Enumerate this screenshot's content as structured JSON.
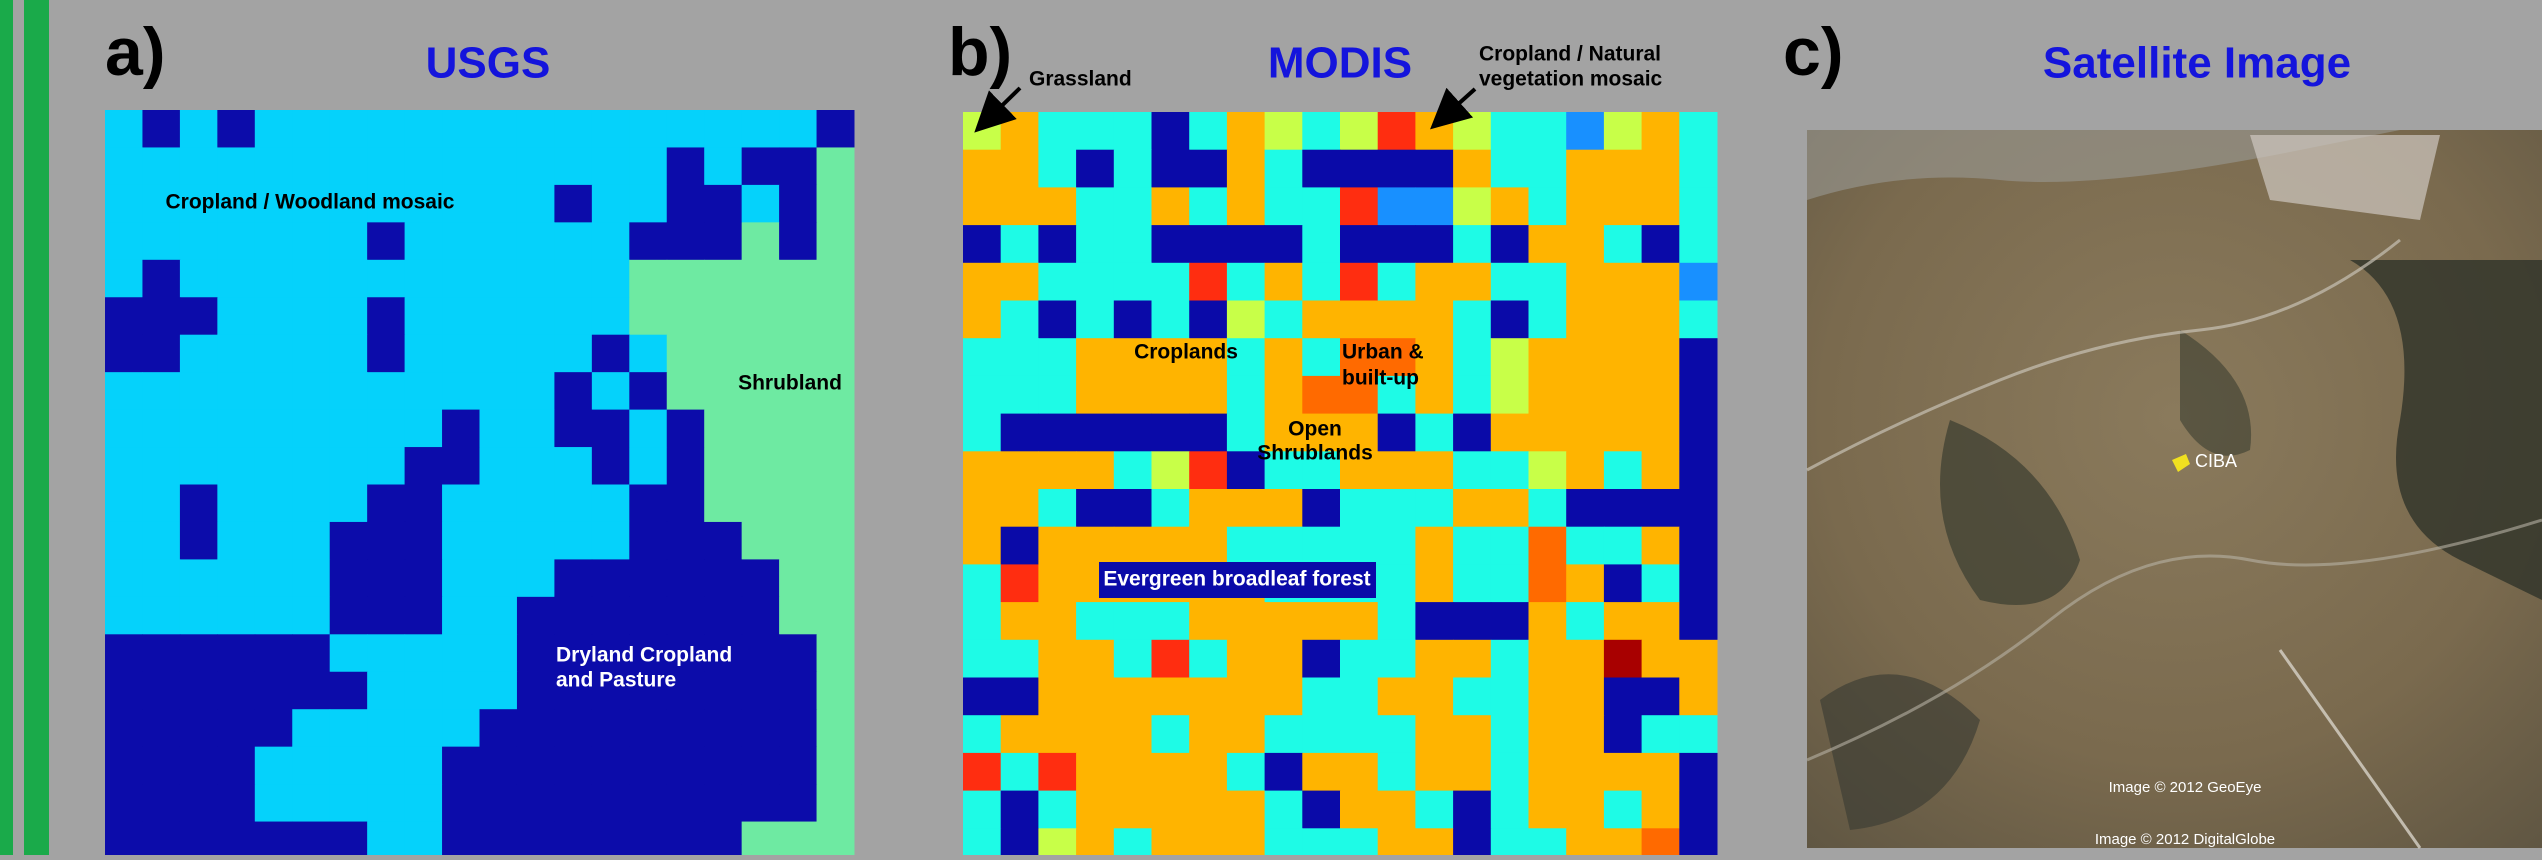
{
  "panels": [
    {
      "label": "a)",
      "title": "USGS",
      "annotations": [
        "Cropland / Woodland mosaic",
        "Shrubland",
        "Dryland Cropland",
        "and Pasture"
      ]
    },
    {
      "label": "b)",
      "title": "MODIS",
      "annotations": [
        "Grassland",
        "Cropland / Natural",
        "vegetation mosaic",
        "Croplands",
        "Urban &",
        "built-up",
        "Open",
        "Shrublands",
        "Evergreen broadleaf forest"
      ]
    },
    {
      "label": "c)",
      "title": "Satellite Image",
      "annotations": [
        "CIBA",
        "Image © 2012 GeoEye",
        "Image © 2012 DigitalGlobe"
      ]
    }
  ]
}
